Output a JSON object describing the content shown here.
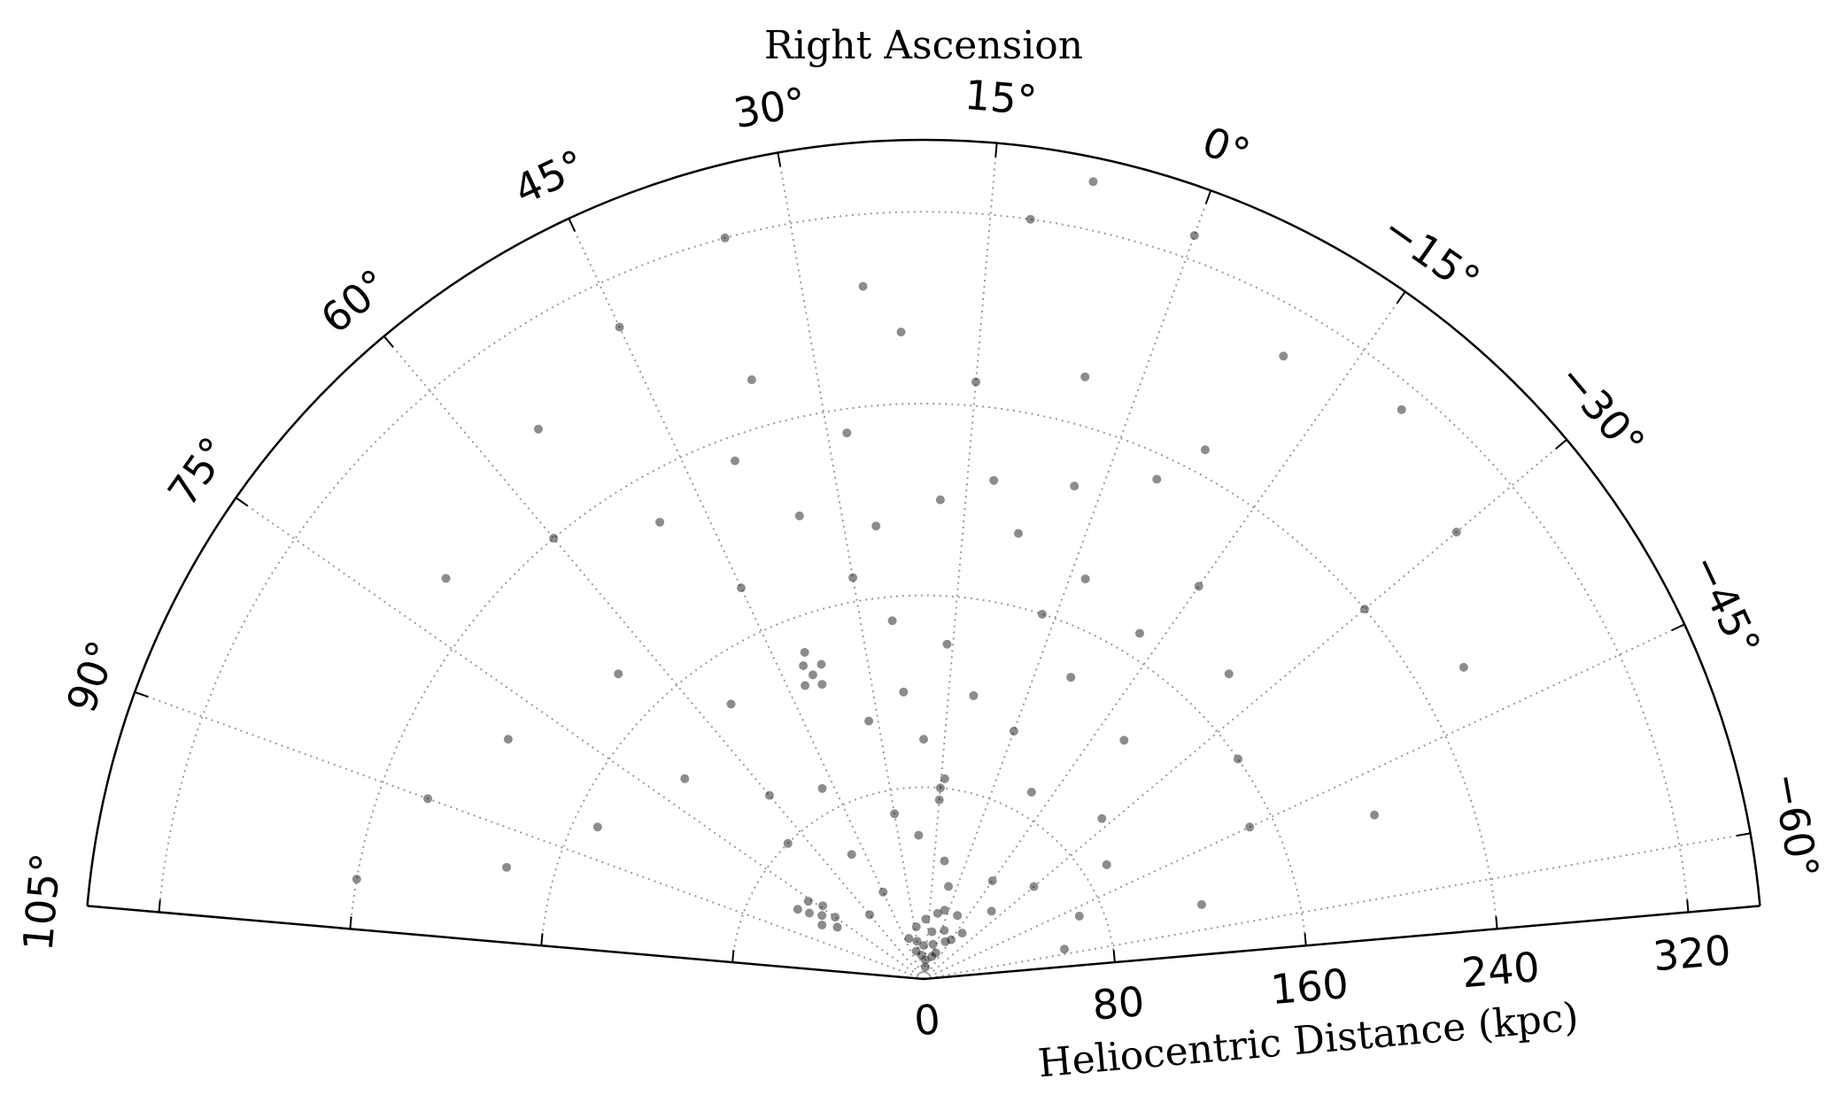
{
  "chart_data": {
    "type": "polar-scatter",
    "title": "Right Ascension",
    "radial_label": "Heliocentric Distance (kpc)",
    "color": "#000000",
    "grid": true,
    "xlim": [
      -65,
      105
    ],
    "xticks": [
      {
        "value": 105,
        "label": "105°"
      },
      {
        "value": 90,
        "label": "90°"
      },
      {
        "value": 75,
        "label": "75°"
      },
      {
        "value": 60,
        "label": "60°"
      },
      {
        "value": 45,
        "label": "45°"
      },
      {
        "value": 30,
        "label": "30°"
      },
      {
        "value": 15,
        "label": "15°"
      },
      {
        "value": 0,
        "label": "0°"
      },
      {
        "value": -15,
        "label": "−15°"
      },
      {
        "value": -30,
        "label": "−30°"
      },
      {
        "value": -45,
        "label": "−45°"
      },
      {
        "value": -60,
        "label": "−60°"
      }
    ],
    "ylim": [
      0,
      350
    ],
    "yticks": [
      0,
      80,
      160,
      240,
      320
    ],
    "x": [
      0,
      5,
      -5,
      10,
      15,
      -10,
      20,
      25,
      -15,
      30,
      35,
      -20,
      8,
      12,
      -3,
      3,
      18,
      28,
      -8,
      40,
      75,
      78,
      80,
      76,
      82,
      79,
      74,
      81,
      39,
      40,
      41,
      40,
      38,
      42,
      15,
      15,
      14,
      20,
      10,
      0,
      -10,
      -20,
      25,
      30,
      35,
      45,
      50,
      60,
      70,
      80,
      90,
      55,
      45,
      35,
      25,
      15,
      5,
      -5,
      -15,
      -25,
      -35,
      -45,
      -55,
      -50,
      -40,
      -30,
      -20,
      -10,
      0,
      12,
      22,
      28,
      18,
      8,
      -2,
      -12,
      32,
      48,
      60,
      70,
      85,
      95,
      100,
      65,
      55,
      -28,
      -38,
      -48,
      -58,
      22,
      30,
      -30,
      10,
      -15,
      5,
      45,
      60,
      50,
      65,
      -25,
      2,
      16,
      24,
      -6,
      36,
      8,
      -30,
      40,
      26,
      12,
      -8,
      3
    ],
    "values": [
      10,
      15,
      12,
      20,
      8,
      18,
      14,
      10,
      20,
      16,
      12,
      25,
      28,
      5,
      22,
      30,
      25,
      22,
      30,
      18,
      45,
      50,
      55,
      58,
      48,
      42,
      52,
      60,
      130,
      135,
      140,
      145,
      138,
      132,
      75,
      80,
      84,
      100,
      120,
      110,
      90,
      130,
      150,
      170,
      200,
      180,
      220,
      240,
      260,
      200,
      220,
      280,
      300,
      320,
      290,
      250,
      260,
      230,
      200,
      180,
      160,
      150,
      120,
      200,
      260,
      290,
      310,
      300,
      330,
      320,
      270,
      230,
      200,
      190,
      180,
      170,
      110,
      90,
      100,
      130,
      150,
      180,
      240,
      180,
      140,
      100,
      90,
      70,
      60,
      60,
      70,
      60,
      50,
      50,
      40,
      40,
      35,
      60,
      80,
      40,
      160,
      140,
      120,
      140,
      260,
      340,
      240,
      230,
      190,
      210,
      250,
      215
    ]
  }
}
